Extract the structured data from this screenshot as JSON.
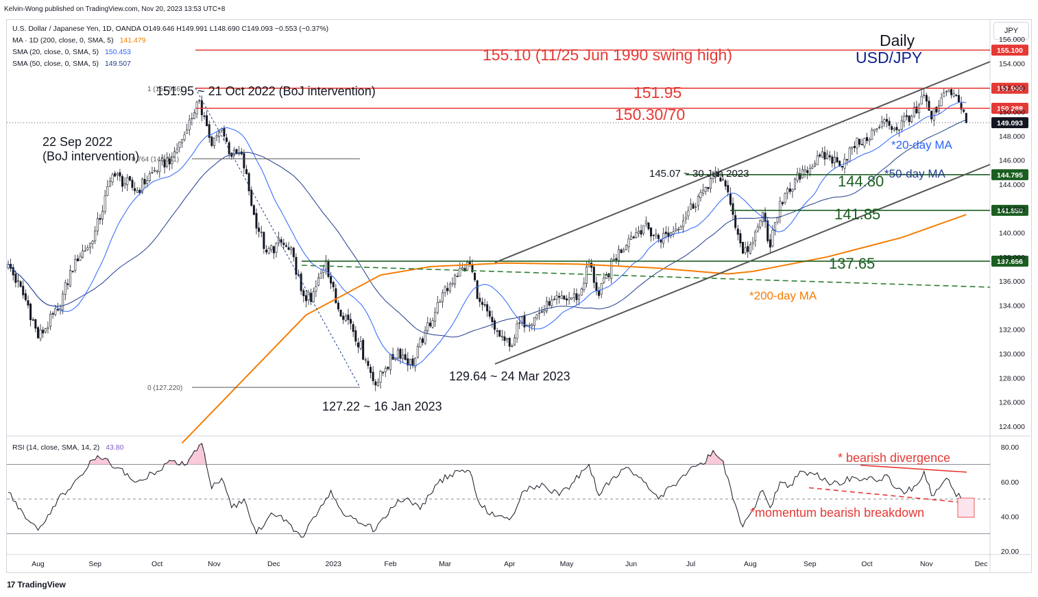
{
  "header": {
    "publisher": "Kelvin-Wong published on TradingView.com, Nov 20, 2023 13:53 UTC+8",
    "symbol_line": "U.S. Dollar / Japanese Yen, 1D, OANDA  O149.646  H149.991  L148.690  C149.093  −0.553 (−0.37%)",
    "ma200_label": "MA · 1D (200, close, 0, SMA, 5)",
    "ma200_value": "141.479",
    "sma20_label": "SMA (20, close, 0, SMA, 5)",
    "sma20_value": "150.453",
    "sma50_label": "SMA (50, close, 0, SMA, 5)",
    "sma50_value": "149.507",
    "rsi_label": "RSI (14, close, SMA, 14, 2)",
    "rsi_value": "43.80",
    "currency_button": "JPY",
    "footer_brand": "TradingView"
  },
  "colors": {
    "up": "#131722",
    "down": "#131722",
    "ma20": "#2962ff",
    "ma50": "#1e3a8a",
    "ma200": "#f57c00",
    "resistance": "#e53935",
    "support": "#1b5e20",
    "channel": "#555555"
  },
  "chart_data": [
    {
      "type": "line",
      "title": "Daily USD/JPY",
      "xlabel": "",
      "ylabel": "JPY",
      "x_tick_labels": [
        "Aug",
        "Sep",
        "Oct",
        "Nov",
        "Dec",
        "2023",
        "Feb",
        "Mar",
        "Apr",
        "May",
        "Jun",
        "Jul",
        "Aug",
        "Sep",
        "Oct",
        "Nov",
        "Dec"
      ],
      "y_ticks": [
        124,
        126,
        128,
        130,
        132,
        134,
        136,
        138,
        140,
        142,
        144,
        146,
        148,
        150,
        152,
        154,
        156
      ],
      "ylim": [
        123.2,
        157.6
      ],
      "close_keypoints": [
        {
          "day": 0,
          "close": 137.4
        },
        {
          "day": 8,
          "close": 134.0
        },
        {
          "day": 12,
          "close": 131.3
        },
        {
          "day": 20,
          "close": 133.6
        },
        {
          "day": 27,
          "close": 137.8
        },
        {
          "day": 34,
          "close": 139.3
        },
        {
          "day": 42,
          "close": 144.8
        },
        {
          "day": 52,
          "close": 143.5
        },
        {
          "day": 58,
          "close": 145.0
        },
        {
          "day": 66,
          "close": 146.3
        },
        {
          "day": 72,
          "close": 148.5
        },
        {
          "day": 76,
          "close": 150.8
        },
        {
          "day": 79,
          "close": 149.6
        },
        {
          "day": 82,
          "close": 147.2
        },
        {
          "day": 86,
          "close": 148.6
        },
        {
          "day": 90,
          "close": 146.3
        },
        {
          "day": 94,
          "close": 146.5
        },
        {
          "day": 99,
          "close": 141.5
        },
        {
          "day": 104,
          "close": 138.4
        },
        {
          "day": 110,
          "close": 139.2
        },
        {
          "day": 115,
          "close": 138.0
        },
        {
          "day": 118,
          "close": 135.2
        },
        {
          "day": 122,
          "close": 134.3
        },
        {
          "day": 128,
          "close": 137.7
        },
        {
          "day": 132,
          "close": 134.2
        },
        {
          "day": 138,
          "close": 132.5
        },
        {
          "day": 144,
          "close": 129.5
        },
        {
          "day": 148,
          "close": 127.4
        },
        {
          "day": 152,
          "close": 128.8
        },
        {
          "day": 157,
          "close": 130.3
        },
        {
          "day": 163,
          "close": 129.0
        },
        {
          "day": 168,
          "close": 131.9
        },
        {
          "day": 174,
          "close": 134.3
        },
        {
          "day": 180,
          "close": 136.5
        },
        {
          "day": 186,
          "close": 137.4
        },
        {
          "day": 190,
          "close": 134.3
        },
        {
          "day": 196,
          "close": 132.0
        },
        {
          "day": 202,
          "close": 130.6
        },
        {
          "day": 206,
          "close": 132.5
        },
        {
          "day": 212,
          "close": 133.0
        },
        {
          "day": 218,
          "close": 134.0
        },
        {
          "day": 224,
          "close": 134.5
        },
        {
          "day": 230,
          "close": 134.8
        },
        {
          "day": 234,
          "close": 137.5
        },
        {
          "day": 238,
          "close": 134.8
        },
        {
          "day": 244,
          "close": 137.8
        },
        {
          "day": 250,
          "close": 139.5
        },
        {
          "day": 256,
          "close": 140.6
        },
        {
          "day": 262,
          "close": 139.5
        },
        {
          "day": 268,
          "close": 140.1
        },
        {
          "day": 274,
          "close": 141.8
        },
        {
          "day": 280,
          "close": 143.5
        },
        {
          "day": 284,
          "close": 144.7
        },
        {
          "day": 288,
          "close": 144.4
        },
        {
          "day": 292,
          "close": 141.5
        },
        {
          "day": 296,
          "close": 138.3
        },
        {
          "day": 300,
          "close": 139.2
        },
        {
          "day": 304,
          "close": 141.7
        },
        {
          "day": 307,
          "close": 138.8
        },
        {
          "day": 311,
          "close": 142.6
        },
        {
          "day": 315,
          "close": 143.4
        },
        {
          "day": 320,
          "close": 145.2
        },
        {
          "day": 325,
          "close": 145.7
        },
        {
          "day": 330,
          "close": 146.5
        },
        {
          "day": 335,
          "close": 145.5
        },
        {
          "day": 340,
          "close": 147.1
        },
        {
          "day": 345,
          "close": 147.8
        },
        {
          "day": 350,
          "close": 148.6
        },
        {
          "day": 354,
          "close": 149.2
        },
        {
          "day": 358,
          "close": 148.5
        },
        {
          "day": 362,
          "close": 149.6
        },
        {
          "day": 366,
          "close": 149.9
        },
        {
          "day": 369,
          "close": 151.4
        },
        {
          "day": 372,
          "close": 149.4
        },
        {
          "day": 375,
          "close": 150.5
        },
        {
          "day": 378,
          "close": 151.7
        },
        {
          "day": 381,
          "close": 151.5
        },
        {
          "day": 384,
          "close": 150.2
        },
        {
          "day": 386,
          "close": 149.1
        }
      ],
      "ma200_keypoints": [
        {
          "day": 70,
          "value": 122.6
        },
        {
          "day": 120,
          "value": 133.2
        },
        {
          "day": 150,
          "value": 136.5
        },
        {
          "day": 170,
          "value": 137.2
        },
        {
          "day": 200,
          "value": 137.5
        },
        {
          "day": 230,
          "value": 137.4
        },
        {
          "day": 260,
          "value": 137.1
        },
        {
          "day": 290,
          "value": 136.6
        },
        {
          "day": 300,
          "value": 136.8
        },
        {
          "day": 330,
          "value": 138.0
        },
        {
          "day": 360,
          "value": 139.6
        },
        {
          "day": 386,
          "value": 141.5
        }
      ],
      "horizontal_levels": [
        {
          "price": 155.1,
          "label": "155.10 (11/25 Jun 1990 swing high)",
          "axis_label": "155.100",
          "color": "resistance"
        },
        {
          "price": 151.95,
          "label": "151.95",
          "axis_label": "151.946",
          "color": "resistance"
        },
        {
          "price": 150.29,
          "label": "150.30/70",
          "axis_label": "150.288",
          "color": "resistance"
        },
        {
          "price": 144.8,
          "label": "144.80",
          "axis_label": "144.795",
          "color": "support"
        },
        {
          "price": 141.85,
          "label": "141.85",
          "axis_label": "141.850",
          "color": "support"
        },
        {
          "price": 137.65,
          "label": "137.65",
          "axis_label": "137.656",
          "color": "support"
        }
      ],
      "last_price_label": "149.093",
      "annotations": {
        "daily": "Daily",
        "pair": "USD/JPY",
        "oct_high": "151.95 ~ 21 Oct 2022 (BoJ intervention)",
        "sep_intervention_1": "22 Sep 2022",
        "sep_intervention_2": "(BoJ intervention)",
        "fib_100": "1 (151.946)",
        "fib_764": "0.764 (146.111)",
        "fib_0": "0 (127.220)",
        "jan_low": "127.22 ~ 16 Jan 2023",
        "mar_low": "129.64 ~ 24 Mar 2023",
        "jun_high": "145.07 ~ 30 Jun 2023",
        "ma20_label": "*20-day MA",
        "ma50_label": "*50-day MA",
        "ma200_label": "*200-day MA"
      }
    },
    {
      "type": "line",
      "title": "RSI (14)",
      "y_ticks": [
        20,
        40,
        60,
        80
      ],
      "ylim": [
        18,
        86
      ],
      "bands": [
        30,
        50,
        70
      ],
      "rsi_keypoints": [
        {
          "day": 0,
          "value": 54
        },
        {
          "day": 6,
          "value": 42
        },
        {
          "day": 12,
          "value": 32
        },
        {
          "day": 20,
          "value": 50
        },
        {
          "day": 28,
          "value": 62
        },
        {
          "day": 36,
          "value": 75
        },
        {
          "day": 44,
          "value": 68
        },
        {
          "day": 52,
          "value": 60
        },
        {
          "day": 58,
          "value": 65
        },
        {
          "day": 66,
          "value": 72
        },
        {
          "day": 72,
          "value": 70
        },
        {
          "day": 78,
          "value": 82
        },
        {
          "day": 82,
          "value": 56
        },
        {
          "day": 86,
          "value": 62
        },
        {
          "day": 90,
          "value": 45
        },
        {
          "day": 95,
          "value": 50
        },
        {
          "day": 100,
          "value": 30
        },
        {
          "day": 106,
          "value": 42
        },
        {
          "day": 112,
          "value": 38
        },
        {
          "day": 118,
          "value": 28
        },
        {
          "day": 124,
          "value": 40
        },
        {
          "day": 130,
          "value": 55
        },
        {
          "day": 136,
          "value": 40
        },
        {
          "day": 142,
          "value": 36
        },
        {
          "day": 148,
          "value": 32
        },
        {
          "day": 154,
          "value": 45
        },
        {
          "day": 160,
          "value": 50
        },
        {
          "day": 166,
          "value": 44
        },
        {
          "day": 172,
          "value": 58
        },
        {
          "day": 178,
          "value": 64
        },
        {
          "day": 186,
          "value": 66
        },
        {
          "day": 190,
          "value": 47
        },
        {
          "day": 196,
          "value": 40
        },
        {
          "day": 202,
          "value": 38
        },
        {
          "day": 208,
          "value": 55
        },
        {
          "day": 216,
          "value": 58
        },
        {
          "day": 222,
          "value": 52
        },
        {
          "day": 228,
          "value": 60
        },
        {
          "day": 234,
          "value": 70
        },
        {
          "day": 238,
          "value": 52
        },
        {
          "day": 244,
          "value": 63
        },
        {
          "day": 250,
          "value": 68
        },
        {
          "day": 256,
          "value": 60
        },
        {
          "day": 262,
          "value": 50
        },
        {
          "day": 268,
          "value": 58
        },
        {
          "day": 274,
          "value": 66
        },
        {
          "day": 280,
          "value": 70
        },
        {
          "day": 284,
          "value": 78
        },
        {
          "day": 288,
          "value": 72
        },
        {
          "day": 292,
          "value": 50
        },
        {
          "day": 296,
          "value": 34
        },
        {
          "day": 300,
          "value": 44
        },
        {
          "day": 304,
          "value": 55
        },
        {
          "day": 307,
          "value": 45
        },
        {
          "day": 311,
          "value": 60
        },
        {
          "day": 315,
          "value": 58
        },
        {
          "day": 320,
          "value": 66
        },
        {
          "day": 325,
          "value": 64
        },
        {
          "day": 330,
          "value": 60
        },
        {
          "day": 335,
          "value": 58
        },
        {
          "day": 340,
          "value": 63
        },
        {
          "day": 345,
          "value": 62
        },
        {
          "day": 350,
          "value": 60
        },
        {
          "day": 354,
          "value": 64
        },
        {
          "day": 358,
          "value": 56
        },
        {
          "day": 362,
          "value": 54
        },
        {
          "day": 366,
          "value": 58
        },
        {
          "day": 369,
          "value": 66
        },
        {
          "day": 372,
          "value": 52
        },
        {
          "day": 375,
          "value": 56
        },
        {
          "day": 378,
          "value": 62
        },
        {
          "day": 381,
          "value": 55
        },
        {
          "day": 384,
          "value": 50
        },
        {
          "day": 386,
          "value": 43.8
        }
      ],
      "annotations": {
        "bearish_divergence": "* bearish divergence",
        "momentum_breakdown": "*momentum bearish breakdown"
      }
    }
  ]
}
